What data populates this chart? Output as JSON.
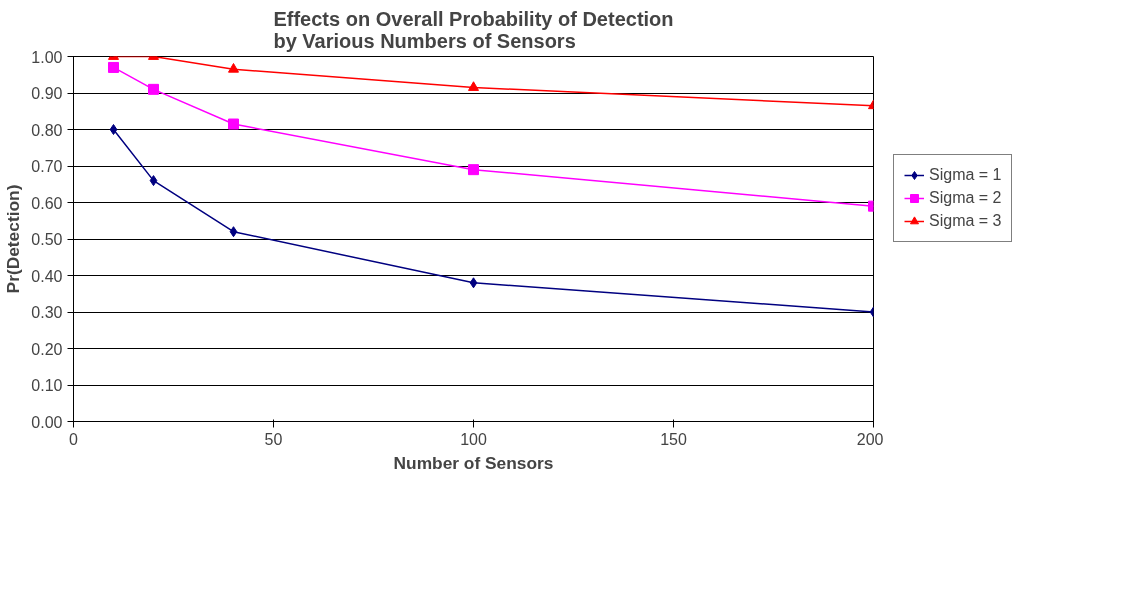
{
  "chart_data": {
    "type": "line",
    "title": "Effects on Overall Probability of Detection\nby Various Numbers of Sensors",
    "xlabel": "Number of Sensors",
    "ylabel": "Pr(Detection)",
    "x": [
      10,
      20,
      40,
      100,
      200
    ],
    "series": [
      {
        "name": "Sigma = 1",
        "color": "#000080",
        "marker": "diamond",
        "values": [
          0.8,
          0.66,
          0.52,
          0.38,
          0.3
        ]
      },
      {
        "name": "Sigma = 2",
        "color": "#ff00ff",
        "marker": "square",
        "values": [
          0.97,
          0.91,
          0.815,
          0.69,
          0.59
        ]
      },
      {
        "name": "Sigma = 3",
        "color": "#ff0000",
        "marker": "triangle",
        "values": [
          1.0,
          1.0,
          0.965,
          0.915,
          0.865
        ]
      }
    ],
    "xlim": [
      0,
      200
    ],
    "xticks": [
      0,
      50,
      100,
      150,
      200
    ],
    "ylim": [
      0,
      1
    ],
    "yticks": [
      {
        "value": 0,
        "label": "0.00"
      },
      {
        "value": 0.1,
        "label": "0.10"
      },
      {
        "value": 0.2,
        "label": "0.20"
      },
      {
        "value": 0.3,
        "label": "0.30"
      },
      {
        "value": 0.4,
        "label": "0.40"
      },
      {
        "value": 0.5,
        "label": "0.50"
      },
      {
        "value": 0.6,
        "label": "0.60"
      },
      {
        "value": 0.7,
        "label": "0.70"
      },
      {
        "value": 0.8,
        "label": "0.80"
      },
      {
        "value": 0.9,
        "label": "0.90"
      },
      {
        "value": 1.0,
        "label": "1.00"
      }
    ],
    "grid": "y",
    "legend": "right",
    "line_style": "solid"
  }
}
